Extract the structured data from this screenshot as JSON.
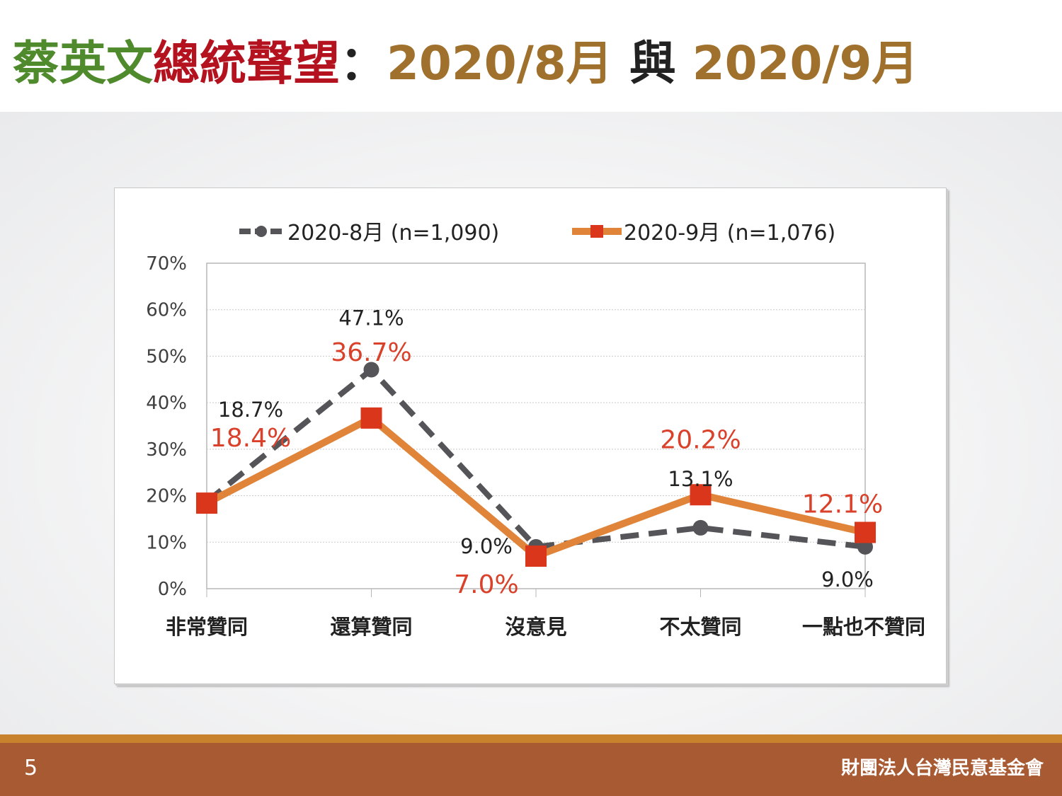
{
  "title": {
    "part1": "蔡英文",
    "part2": "總統聲望",
    "colon": "：",
    "part3": "2020/8月",
    "joiner": " 與 ",
    "part4": "2020/9月"
  },
  "colors": {
    "aug_series": "#555559",
    "sep_series": "#e0843a",
    "sep_marker": "#d9361c",
    "sep_label": "#d9412b",
    "title_green": "#4f8a2c",
    "title_red": "#b3121e",
    "title_gold": "#a0712d",
    "footer_bar": "#a85a33",
    "footer_line": "#c8812d"
  },
  "chart_data": {
    "type": "line",
    "categories": [
      "非常贊同",
      "還算贊同",
      "沒意見",
      "不太贊同",
      "一點也不贊同"
    ],
    "series": [
      {
        "name": "2020-8月  (n=1,090)",
        "values": [
          18.7,
          47.1,
          9.0,
          13.1,
          9.0
        ],
        "labels": [
          "18.7%",
          "47.1%",
          "9.0%",
          "13.1%",
          "9.0%"
        ],
        "style": "dashed",
        "marker": "circle"
      },
      {
        "name": "2020-9月  (n=1,076)",
        "values": [
          18.4,
          36.7,
          7.0,
          20.2,
          12.1
        ],
        "labels": [
          "18.4%",
          "36.7%",
          "7.0%",
          "20.2%",
          "12.1%"
        ],
        "style": "solid",
        "marker": "square"
      }
    ],
    "y_ticks": [
      "0%",
      "10%",
      "20%",
      "30%",
      "40%",
      "50%",
      "60%",
      "70%"
    ],
    "ylim": [
      0,
      70
    ],
    "grid": "horizontal dotted",
    "legend": "top"
  },
  "footer": {
    "page": "5",
    "org": "財團法人台灣民意基金會"
  }
}
